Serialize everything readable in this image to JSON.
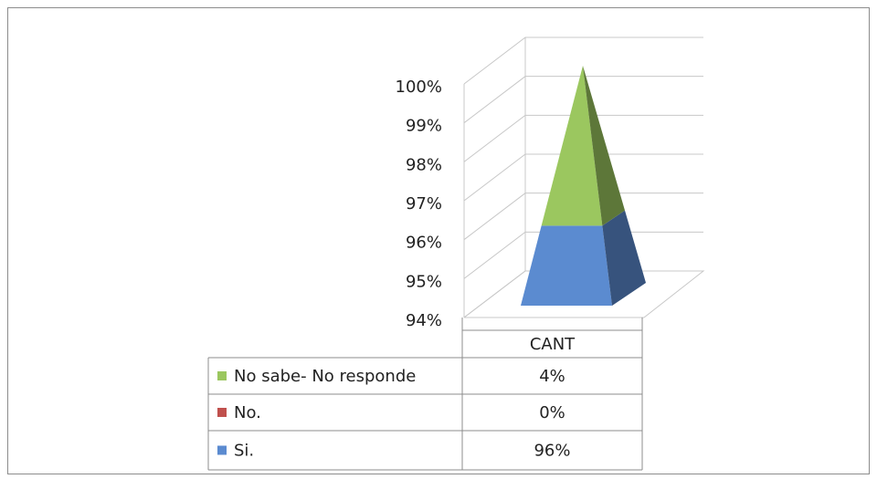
{
  "chart_data": {
    "type": "pyramid",
    "categories": [
      "CANT"
    ],
    "series": [
      {
        "name": "Si.",
        "color": "#5b8bd0",
        "values": [
          96
        ],
        "value_labels": [
          "96%"
        ]
      },
      {
        "name": "No.",
        "color": "#c0504d",
        "values": [
          0
        ],
        "value_labels": [
          "0%"
        ]
      },
      {
        "name": "No sabe- No responde",
        "color": "#9bc75f",
        "values": [
          4
        ],
        "value_labels": [
          "4%"
        ]
      }
    ],
    "ylim": [
      94,
      100
    ],
    "yticks": [
      {
        "value": 94,
        "label": "94%"
      },
      {
        "value": 95,
        "label": "95%"
      },
      {
        "value": 96,
        "label": "96%"
      },
      {
        "value": 97,
        "label": "97%"
      },
      {
        "value": 98,
        "label": "98%"
      },
      {
        "value": 99,
        "label": "99%"
      },
      {
        "value": 100,
        "label": "100%"
      }
    ],
    "grid": true
  }
}
